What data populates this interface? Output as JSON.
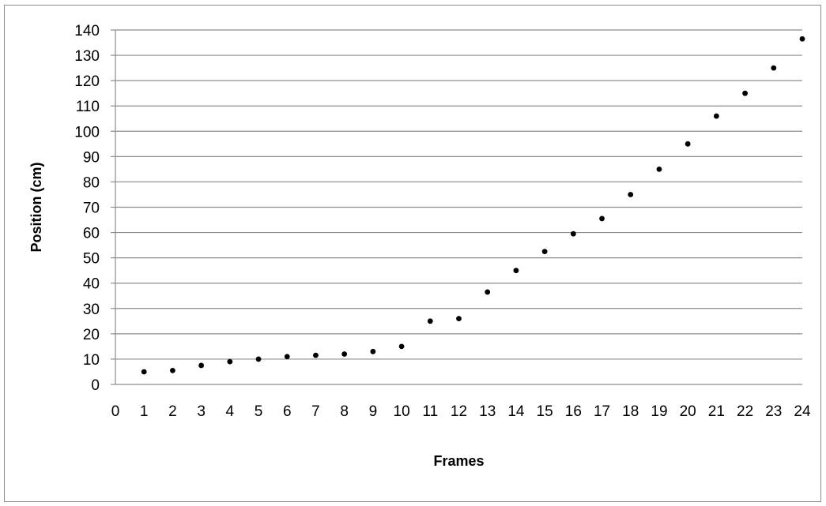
{
  "chart_data": {
    "type": "scatter",
    "title": "",
    "xlabel": "Frames",
    "ylabel": "Position (cm)",
    "xlim": [
      0,
      24
    ],
    "ylim": [
      0,
      140
    ],
    "x_ticks": [
      "0",
      "1",
      "2",
      "3",
      "4",
      "5",
      "6",
      "7",
      "8",
      "9",
      "10",
      "11",
      "12",
      "13",
      "14",
      "15",
      "16",
      "17",
      "18",
      "19",
      "20",
      "21",
      "22",
      "23",
      "24"
    ],
    "y_ticks": [
      "0",
      "10",
      "20",
      "30",
      "40",
      "50",
      "60",
      "70",
      "80",
      "90",
      "100",
      "110",
      "120",
      "130",
      "140"
    ],
    "grid": "horizontal",
    "legend": "none",
    "series": [
      {
        "x": [
          1,
          2,
          3,
          4,
          5,
          6,
          7,
          8,
          9,
          10,
          11,
          12,
          13,
          14,
          15,
          16,
          17,
          18,
          19,
          20,
          21,
          22,
          23,
          24
        ],
        "y": [
          5,
          5.5,
          7.5,
          9,
          10,
          11,
          11.5,
          12,
          13,
          15,
          25,
          26,
          36.5,
          45,
          52.5,
          59.5,
          65.5,
          75,
          85,
          95,
          106,
          115,
          125,
          136.5
        ]
      }
    ],
    "colors": {
      "marker": "#000000",
      "gridline": "#8c8c8c",
      "frame": "#8c8c8c"
    }
  }
}
